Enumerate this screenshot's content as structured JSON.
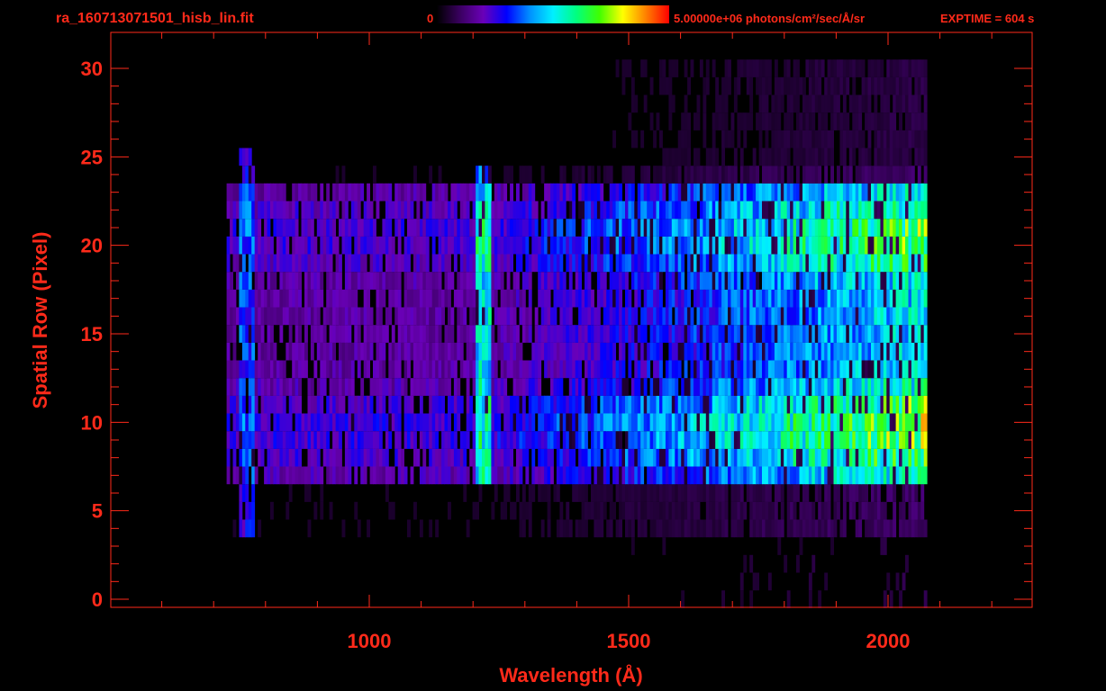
{
  "header": {
    "filename": "ra_160713071501_hisb_lin.fit",
    "colorbar_min_label": "0",
    "colorbar_max_label": "5.00000e+06 photons/cm²/sec/Å/sr",
    "exptime": "EXPTIME = 604 s"
  },
  "colors": {
    "accent": "#ff2a1a",
    "background": "#000000",
    "colormap": [
      "#000000",
      "#3a0060",
      "#6a00b8",
      "#0000ff",
      "#0090ff",
      "#00f0ff",
      "#00ff80",
      "#40ff00",
      "#ffff00",
      "#ff8000",
      "#ff0000"
    ]
  },
  "chart_data": {
    "type": "heatmap",
    "title": "ra_160713071501_hisb_lin.fit",
    "xlabel": "Wavelength (Å)",
    "ylabel": "Spatial Row (Pixel)",
    "xlim": [
      550,
      2300
    ],
    "ylim": [
      -0.5,
      30.5
    ],
    "x_ticks": [
      1000,
      1500,
      2000
    ],
    "x_tick_labels": [
      "1000",
      "1500",
      "2000"
    ],
    "y_ticks": [
      0,
      5,
      10,
      15,
      20,
      25,
      30
    ],
    "y_tick_labels": [
      "0",
      "5",
      "10",
      "15",
      "20",
      "25",
      "30"
    ],
    "colorbar": {
      "min": 0,
      "max": 5000000,
      "unit": "photons/cm²/sec/Å/sr"
    },
    "grid": false,
    "data_extent": {
      "wavelength": [
        725,
        2070
      ],
      "rows": [
        0,
        30
      ]
    },
    "features": [
      {
        "wavelength": 1216,
        "rows": [
          7,
          24
        ],
        "intensity": 0.6
      },
      {
        "wavelength": 760,
        "rows": [
          4,
          25
        ],
        "intensity": 0.4
      }
    ],
    "bright_rows": [
      {
        "rows": [
          7,
          12
        ],
        "peak": 0.8
      },
      {
        "rows": [
          18,
          23
        ],
        "peak": 0.75
      }
    ]
  }
}
